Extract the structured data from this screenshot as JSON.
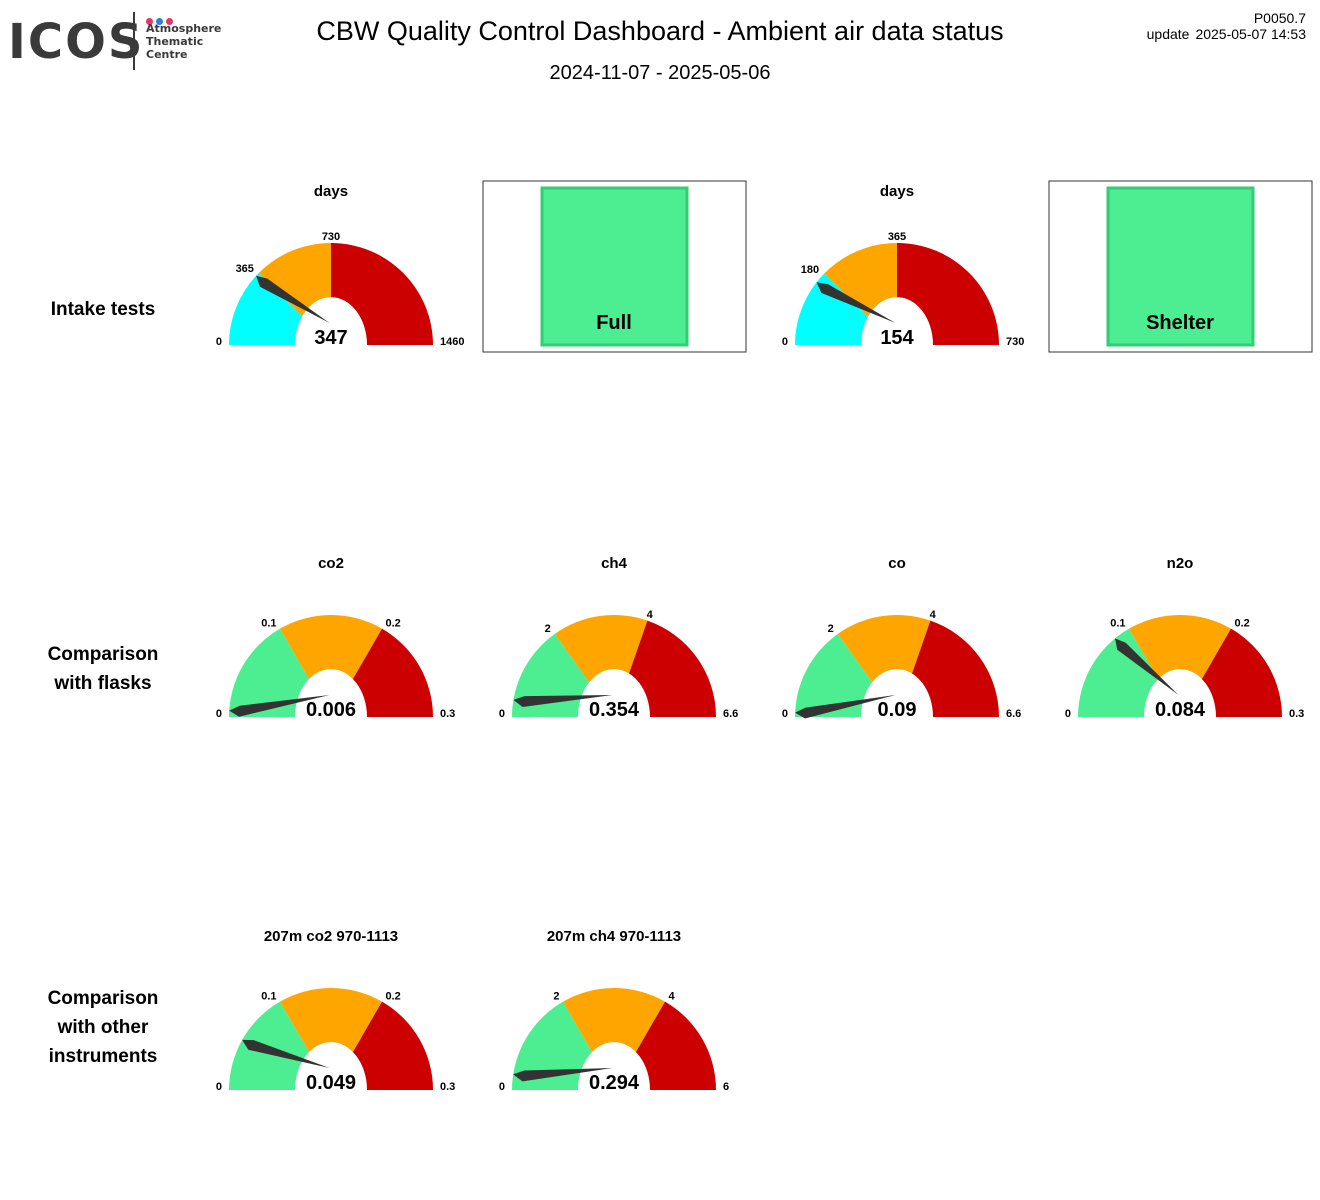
{
  "logo": {
    "word": "ICOS",
    "lines": [
      "Atmosphere",
      "Thematic",
      "Centre"
    ],
    "dot_colors": [
      "#e8336e",
      "#2a84d4",
      "#e8336e"
    ]
  },
  "header": {
    "title": "CBW  Quality Control Dashboard - Ambient air data status",
    "date_range": "2024-11-07 - 2025-05-06",
    "code": "P0050.7",
    "update_label": "update",
    "update_value": "2025-05-07 14:53"
  },
  "rows": [
    {
      "label_lines": [
        "Intake tests"
      ]
    },
    {
      "label_lines": [
        "Comparison",
        "with flasks"
      ]
    },
    {
      "label_lines": [
        "Comparison",
        "with other",
        "instruments"
      ]
    }
  ],
  "colors": {
    "green": "#4ded91",
    "cyan": "#00ffff",
    "orange": "#ffa500",
    "red": "#cc0000",
    "needle": "#333333",
    "status_fill": "#4ded91",
    "status_border": "#33cc77"
  },
  "chart_data": [
    {
      "type": "gauge",
      "row": 0,
      "col": 0,
      "title": "days",
      "min": 0,
      "max": 1460,
      "thresholds": [
        365,
        730
      ],
      "value": 347,
      "value_label": "347",
      "tick_labels": [
        "0",
        "365",
        "730",
        "1460"
      ],
      "zone_colors": [
        "cyan",
        "orange",
        "red"
      ]
    },
    {
      "type": "status",
      "row": 0,
      "col": 1,
      "label": "Full",
      "status_color": "green"
    },
    {
      "type": "gauge",
      "row": 0,
      "col": 2,
      "title": "days",
      "min": 0,
      "max": 730,
      "thresholds": [
        180,
        365
      ],
      "value": 154,
      "value_label": "154",
      "tick_labels": [
        "0",
        "180",
        "365",
        "730"
      ],
      "zone_colors": [
        "cyan",
        "orange",
        "red"
      ]
    },
    {
      "type": "status",
      "row": 0,
      "col": 3,
      "label": "Shelter",
      "status_color": "green"
    },
    {
      "type": "gauge",
      "row": 1,
      "col": 0,
      "title": "co2",
      "min": 0,
      "max": 0.3,
      "thresholds": [
        0.1,
        0.2
      ],
      "value": 0.006,
      "value_label": "0.006",
      "tick_labels": [
        "0",
        "0.1",
        "0.2",
        "0.3"
      ],
      "zone_colors": [
        "green",
        "orange",
        "red"
      ]
    },
    {
      "type": "gauge",
      "row": 1,
      "col": 1,
      "title": "ch4",
      "min": 0,
      "max": 6.6,
      "thresholds": [
        2,
        4
      ],
      "value": 0.354,
      "value_label": "0.354",
      "tick_labels": [
        "0",
        "2",
        "4",
        "6.6"
      ],
      "zone_colors": [
        "green",
        "orange",
        "red"
      ]
    },
    {
      "type": "gauge",
      "row": 1,
      "col": 2,
      "title": "co",
      "min": 0,
      "max": 6.6,
      "thresholds": [
        2,
        4
      ],
      "value": 0.09,
      "value_label": "0.09",
      "tick_labels": [
        "0",
        "2",
        "4",
        "6.6"
      ],
      "zone_colors": [
        "green",
        "orange",
        "red"
      ]
    },
    {
      "type": "gauge",
      "row": 1,
      "col": 3,
      "title": "n2o",
      "min": 0,
      "max": 0.3,
      "thresholds": [
        0.1,
        0.2
      ],
      "value": 0.084,
      "value_label": "0.084",
      "tick_labels": [
        "0",
        "0.1",
        "0.2",
        "0.3"
      ],
      "zone_colors": [
        "green",
        "orange",
        "red"
      ]
    },
    {
      "type": "gauge",
      "row": 2,
      "col": 0,
      "title": "207m co2 970-1113",
      "min": 0,
      "max": 0.3,
      "thresholds": [
        0.1,
        0.2
      ],
      "value": 0.049,
      "value_label": "0.049",
      "tick_labels": [
        "0",
        "0.1",
        "0.2",
        "0.3"
      ],
      "zone_colors": [
        "green",
        "orange",
        "red"
      ]
    },
    {
      "type": "gauge",
      "row": 2,
      "col": 1,
      "title": "207m ch4 970-1113",
      "min": 0,
      "max": 6,
      "thresholds": [
        2,
        4
      ],
      "value": 0.294,
      "value_label": "0.294",
      "tick_labels": [
        "0",
        "2",
        "4",
        "6"
      ],
      "zone_colors": [
        "green",
        "orange",
        "red"
      ]
    }
  ]
}
